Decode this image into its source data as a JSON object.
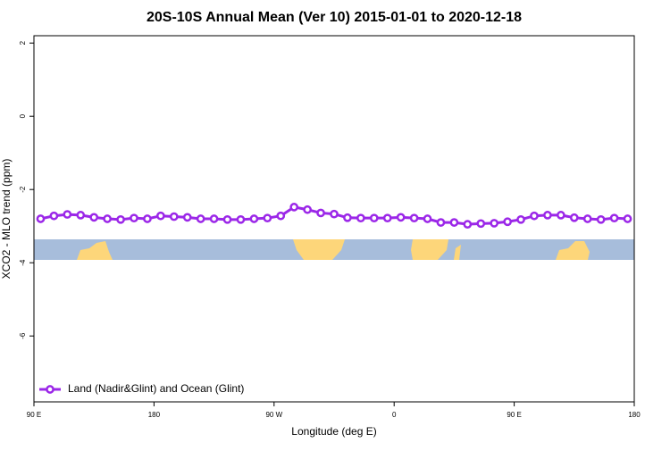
{
  "chart_data": {
    "type": "line",
    "title": "20S-10S Annual Mean (Ver 10)   2015-01-01 to 2020-12-18",
    "xlabel": "Longitude (deg E)",
    "ylabel": "XCO2 - MLO trend (ppm)",
    "x": [
      95,
      105,
      115,
      125,
      135,
      145,
      155,
      165,
      175,
      185,
      195,
      205,
      215,
      225,
      235,
      245,
      255,
      265,
      275,
      285,
      295,
      305,
      315,
      325,
      335,
      345,
      355,
      365,
      375,
      385,
      395,
      405,
      415,
      425,
      435,
      445,
      455,
      465,
      475,
      485,
      495,
      505,
      515,
      525,
      535
    ],
    "series": [
      {
        "name": "Land (Nadir&Glint) and Ocean (Glint)",
        "color": "#9b27e8",
        "values": [
          -2.8,
          -2.72,
          -2.68,
          -2.7,
          -2.76,
          -2.8,
          -2.82,
          -2.78,
          -2.8,
          -2.72,
          -2.74,
          -2.76,
          -2.8,
          -2.8,
          -2.82,
          -2.82,
          -2.8,
          -2.78,
          -2.72,
          -2.48,
          -2.55,
          -2.64,
          -2.67,
          -2.77,
          -2.78,
          -2.78,
          -2.78,
          -2.76,
          -2.78,
          -2.8,
          -2.9,
          -2.9,
          -2.95,
          -2.93,
          -2.92,
          -2.88,
          -2.82,
          -2.72,
          -2.7,
          -2.7,
          -2.77,
          -2.8,
          -2.82,
          -2.78,
          -2.8
        ]
      }
    ],
    "xlim": [
      90,
      540
    ],
    "xticks": [
      {
        "value": 90,
        "label": "90 E"
      },
      180,
      {
        "value": 270,
        "label": "90 W"
      },
      {
        "value": 360,
        "label": "0"
      },
      {
        "value": 450,
        "label": "90 E"
      },
      {
        "value": 540,
        "label": "180"
      }
    ],
    "ylim": [
      -7.8,
      2.2
    ],
    "yticks": [
      -6,
      -4,
      -2,
      0,
      2
    ],
    "legend": "bottom-left"
  }
}
